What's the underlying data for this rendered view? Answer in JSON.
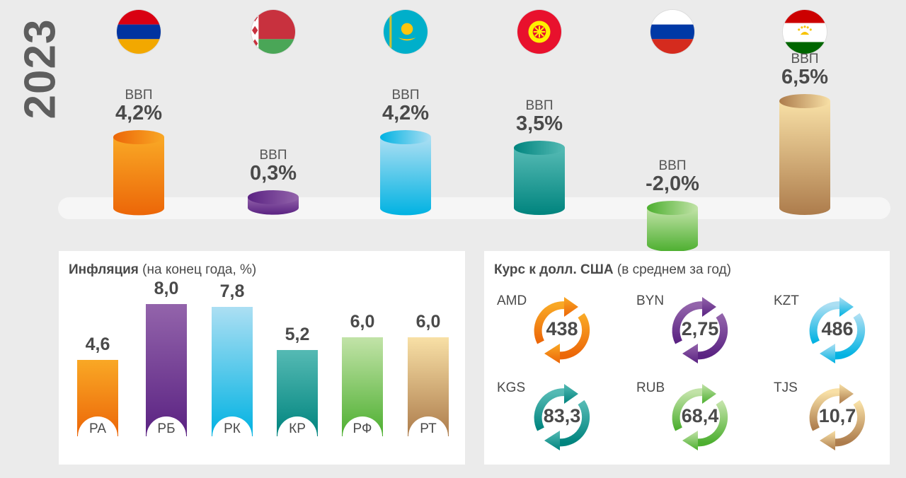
{
  "year": "2023",
  "chart_data": [
    {
      "type": "bar",
      "title": "ВВП",
      "categories": [
        "Армения",
        "Беларусь",
        "Казахстан",
        "Кыргызстан",
        "Россия",
        "Таджикистан"
      ],
      "label": "ВВП",
      "values": [
        4.2,
        0.3,
        4.2,
        3.5,
        -2.0,
        6.5
      ],
      "value_labels": [
        "4,2%",
        "0,3%",
        "4,2%",
        "3,5%",
        "-2,0%",
        "6,5%"
      ],
      "flags": [
        "armenia-flag",
        "belarus-flag",
        "kazakhstan-flag",
        "kyrgyzstan-flag",
        "russia-flag",
        "tajikistan-flag"
      ]
    },
    {
      "type": "bar",
      "title": "Инфляция",
      "subtitle": "(на конец года, %)",
      "categories": [
        "РА",
        "РБ",
        "РК",
        "КР",
        "РФ",
        "РТ"
      ],
      "values": [
        4.6,
        8.0,
        7.8,
        5.2,
        6.0,
        6.0
      ],
      "value_labels": [
        "4,6",
        "8,0",
        "7,8",
        "5,2",
        "6,0",
        "6,0"
      ]
    },
    {
      "type": "table",
      "title": "Курс к долл. США",
      "subtitle": "(в среднем за год)",
      "categories": [
        "AMD",
        "BYN",
        "KZT",
        "KGS",
        "RUB",
        "TJS"
      ],
      "values": [
        438,
        2.75,
        486,
        83.3,
        68.4,
        10.7
      ],
      "value_labels": [
        "438",
        "2,75",
        "486",
        "83,3",
        "68,4",
        "10,7"
      ]
    }
  ],
  "colors": [
    [
      "#f9a825",
      "#ec6608"
    ],
    [
      "#9364ab",
      "#5a2282"
    ],
    [
      "#acdff3",
      "#00b2e2"
    ],
    [
      "#55bab4",
      "#00847e"
    ],
    [
      "#c2e3a8",
      "#4daf30"
    ],
    [
      "#f8e0a6",
      "#ad7c4c"
    ]
  ]
}
